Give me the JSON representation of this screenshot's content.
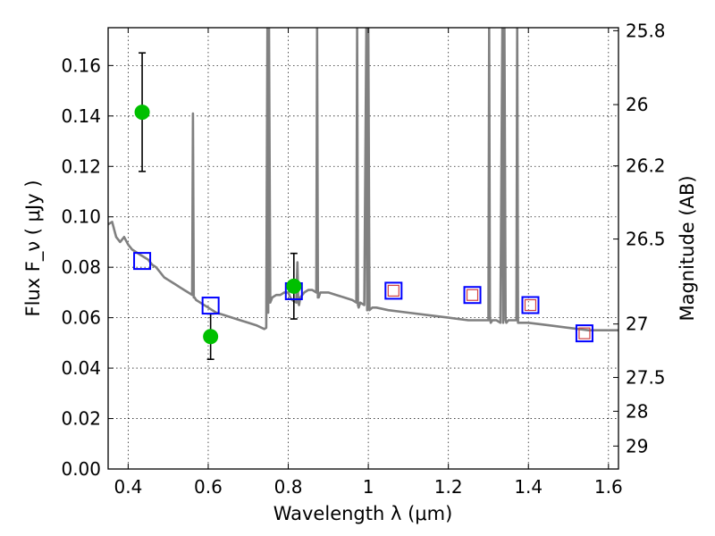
{
  "chart_data": {
    "type": "scatter",
    "xlabel": "Wavelength  λ (μm)",
    "ylabel": "Flux  F_ν  ( μJy )",
    "y2label": "Magnitude (AB)",
    "xlim": [
      0.35,
      1.625
    ],
    "ylim": [
      0.0,
      0.175
    ],
    "grid": true,
    "x_ticks": [
      0.4,
      0.6,
      0.8,
      1.0,
      1.2,
      1.4,
      1.6
    ],
    "x_tick_labels": [
      "0.4",
      "0.6",
      "0.8",
      "1",
      "1.2",
      "1.4",
      "1.6"
    ],
    "y_ticks": [
      0.0,
      0.02,
      0.04,
      0.06,
      0.08,
      0.1,
      0.12,
      0.14,
      0.16
    ],
    "y_tick_labels": [
      "0.00",
      "0.02",
      "0.04",
      "0.06",
      "0.08",
      "0.10",
      "0.12",
      "0.14",
      "0.16"
    ],
    "y2_ticks": [
      {
        "label": "25.8",
        "flux": 0.1738
      },
      {
        "label": "26",
        "flux": 0.1445
      },
      {
        "label": "26.2",
        "flux": 0.1202
      },
      {
        "label": "26.5",
        "flux": 0.0912
      },
      {
        "label": "27",
        "flux": 0.0575
      },
      {
        "label": "27.5",
        "flux": 0.0363
      },
      {
        "label": "28",
        "flux": 0.0229
      },
      {
        "label": "29",
        "flux": 0.0091
      }
    ],
    "series": [
      {
        "marker": "green-circle",
        "color": "#00c000",
        "x": [
          0.435,
          0.606,
          0.814
        ],
        "y": [
          0.1415,
          0.0525,
          0.0725
        ],
        "yerr_low": [
          0.118,
          0.0435,
          0.0595
        ],
        "yerr_high": [
          0.165,
          0.0615,
          0.0855
        ]
      },
      {
        "marker": "blue-open-square",
        "color": "#0000ff",
        "x": [
          0.435,
          0.606,
          0.814,
          1.063,
          1.26,
          1.405,
          1.54
        ],
        "y": [
          0.0825,
          0.0648,
          0.0705,
          0.0707,
          0.069,
          0.065,
          0.0538
        ]
      },
      {
        "marker": "red-open-square",
        "color": "#d04040",
        "x": [
          1.063,
          1.26,
          1.405,
          1.54
        ],
        "y": [
          0.0707,
          0.069,
          0.065,
          0.0538
        ]
      },
      {
        "marker": "gray-line",
        "color": "#808080",
        "x": [
          0.35,
          0.36,
          0.365,
          0.37,
          0.38,
          0.39,
          0.4,
          0.41,
          0.42,
          0.43,
          0.44,
          0.45,
          0.46,
          0.47,
          0.48,
          0.49,
          0.5,
          0.51,
          0.52,
          0.53,
          0.54,
          0.55,
          0.56,
          0.562,
          0.564,
          0.566,
          0.57,
          0.58,
          0.6,
          0.62,
          0.64,
          0.66,
          0.68,
          0.7,
          0.72,
          0.74,
          0.745,
          0.748,
          0.75,
          0.752,
          0.755,
          0.76,
          0.77,
          0.78,
          0.79,
          0.8,
          0.805,
          0.81,
          0.82,
          0.823,
          0.825,
          0.827,
          0.83,
          0.84,
          0.85,
          0.86,
          0.87,
          0.872,
          0.874,
          0.876,
          0.88,
          0.9,
          0.92,
          0.94,
          0.96,
          0.97,
          0.972,
          0.974,
          0.976,
          0.98,
          0.99,
          0.995,
          0.997,
          1.0,
          1.003,
          1.01,
          1.02,
          1.05,
          1.1,
          1.15,
          1.2,
          1.25,
          1.3,
          1.302,
          1.304,
          1.306,
          1.31,
          1.32,
          1.33,
          1.335,
          1.337,
          1.34,
          1.343,
          1.345,
          1.35,
          1.36,
          1.37,
          1.372,
          1.374,
          1.376,
          1.38,
          1.4,
          1.45,
          1.5,
          1.55,
          1.6,
          1.625
        ],
        "y": [
          0.097,
          0.098,
          0.095,
          0.092,
          0.09,
          0.092,
          0.089,
          0.087,
          0.086,
          0.085,
          0.084,
          0.083,
          0.081,
          0.08,
          0.078,
          0.076,
          0.075,
          0.074,
          0.073,
          0.072,
          0.071,
          0.07,
          0.069,
          0.141,
          0.068,
          0.068,
          0.067,
          0.066,
          0.064,
          0.062,
          0.061,
          0.06,
          0.059,
          0.058,
          0.057,
          0.0555,
          0.056,
          0.175,
          0.062,
          0.175,
          0.066,
          0.068,
          0.069,
          0.069,
          0.07,
          0.07,
          0.068,
          0.067,
          0.066,
          0.082,
          0.066,
          0.065,
          0.068,
          0.07,
          0.071,
          0.071,
          0.07,
          0.175,
          0.068,
          0.068,
          0.07,
          0.07,
          0.069,
          0.068,
          0.067,
          0.066,
          0.175,
          0.065,
          0.064,
          0.066,
          0.065,
          0.175,
          0.063,
          0.175,
          0.063,
          0.064,
          0.064,
          0.063,
          0.062,
          0.061,
          0.06,
          0.059,
          0.059,
          0.175,
          0.06,
          0.058,
          0.059,
          0.059,
          0.058,
          0.175,
          0.058,
          0.175,
          0.059,
          0.058,
          0.059,
          0.059,
          0.059,
          0.175,
          0.058,
          0.058,
          0.058,
          0.058,
          0.057,
          0.056,
          0.055,
          0.055,
          0.055
        ]
      }
    ]
  }
}
